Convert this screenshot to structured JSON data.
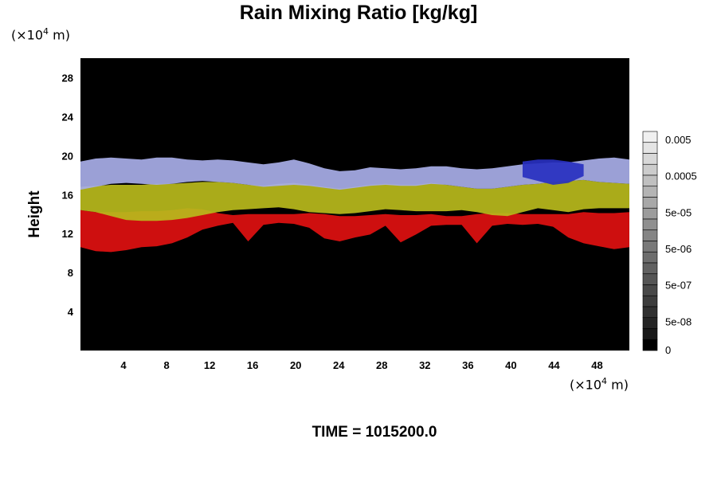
{
  "chart_data": {
    "type": "heatmap",
    "title": "Rain Mixing Ratio [kg/kg]",
    "ylabel": "Height",
    "x_unit": "(×10⁴ m)",
    "y_unit": "(×10⁴ m)",
    "x_unit_base": "(×10",
    "x_unit_exp": "4",
    "x_unit_tail": " m)",
    "y_unit_base": "(×10",
    "y_unit_exp": "4",
    "y_unit_tail": " m)",
    "xlim": [
      0,
      51
    ],
    "ylim": [
      0,
      30
    ],
    "xticks": [
      4,
      8,
      12,
      16,
      20,
      24,
      28,
      32,
      36,
      40,
      44,
      48
    ],
    "yticks": [
      4,
      8,
      12,
      16,
      20,
      24,
      28
    ],
    "colorbar": {
      "ticks": [
        "0.005",
        "0.0005",
        "5e-05",
        "5e-06",
        "5e-07",
        "5e-08",
        "0"
      ]
    },
    "layers": [
      {
        "band": "red",
        "color": "#e01010",
        "top": [
          14.4,
          14.2,
          14.2,
          14.2,
          14.3,
          14.3,
          14.4,
          14.6,
          14.5,
          14.1,
          13.9,
          14.0,
          14.0,
          14.0,
          14.0,
          14.1,
          14.0,
          13.8,
          13.8,
          13.9,
          14.0,
          13.9,
          13.9,
          14.0,
          13.8,
          13.8,
          14.0,
          14.1,
          14.1,
          14.0,
          14.0,
          14.0,
          14.0,
          14.2,
          14.1,
          14.1,
          14.2
        ],
        "bottom": [
          10.6,
          10.2,
          10.1,
          10.3,
          10.6,
          10.7,
          11.0,
          11.6,
          12.4,
          12.8,
          13.1,
          11.2,
          12.9,
          13.1,
          13.0,
          12.6,
          11.5,
          11.2,
          11.6,
          11.9,
          12.8,
          11.1,
          11.9,
          12.8,
          12.9,
          12.9,
          11.0,
          12.8,
          13.0,
          12.9,
          13.0,
          12.7,
          11.6,
          11.0,
          10.7,
          10.4,
          10.6
        ]
      },
      {
        "band": "yellow",
        "color": "#b8ba1c",
        "top": [
          16.8,
          16.9,
          17.0,
          17.0,
          17.0,
          17.1,
          17.1,
          17.2,
          17.3,
          17.3,
          17.2,
          17.0,
          16.9,
          17.1,
          17.2,
          17.0,
          16.8,
          16.6,
          16.8,
          17.0,
          17.1,
          17.0,
          17.0,
          17.2,
          17.0,
          16.8,
          16.6,
          16.6,
          16.8,
          17.0,
          17.1,
          17.3,
          17.4,
          17.5,
          17.3,
          17.2,
          17.1
        ],
        "bottom": [
          14.4,
          14.2,
          13.8,
          13.4,
          13.3,
          13.3,
          13.4,
          13.6,
          13.9,
          14.2,
          14.4,
          14.5,
          14.6,
          14.7,
          14.5,
          14.2,
          14.1,
          14.0,
          14.1,
          14.3,
          14.5,
          14.4,
          14.3,
          14.3,
          14.3,
          14.4,
          14.2,
          13.9,
          13.8,
          14.2,
          14.6,
          14.4,
          14.2,
          14.5,
          14.6,
          14.6,
          14.6
        ]
      },
      {
        "band": "lavender",
        "color": "#a8aee8",
        "top": [
          19.4,
          19.7,
          19.8,
          19.7,
          19.6,
          19.8,
          19.8,
          19.6,
          19.5,
          19.6,
          19.5,
          19.3,
          19.1,
          19.3,
          19.6,
          19.2,
          18.7,
          18.4,
          18.5,
          18.8,
          18.7,
          18.6,
          18.7,
          18.9,
          18.9,
          18.7,
          18.6,
          18.7,
          18.9,
          19.1,
          19.2,
          19.3,
          19.3,
          19.5,
          19.7,
          19.8,
          19.6
        ],
        "bottom": [
          16.5,
          16.8,
          17.1,
          17.2,
          17.1,
          17.0,
          17.1,
          17.3,
          17.4,
          17.3,
          17.2,
          17.0,
          16.8,
          16.9,
          17.0,
          16.9,
          16.7,
          16.5,
          16.7,
          16.9,
          17.0,
          16.9,
          16.9,
          17.1,
          17.0,
          16.8,
          16.6,
          16.6,
          16.8,
          17.0,
          17.1,
          17.3,
          17.4,
          17.5,
          17.3,
          17.2,
          17.1
        ]
      },
      {
        "band": "blue",
        "color": "#2830c0",
        "top": [
          0,
          0,
          0,
          0,
          0,
          0,
          0,
          0,
          0,
          0,
          0,
          0,
          0,
          0,
          0,
          0,
          0,
          0,
          0,
          0,
          0,
          0,
          0,
          0,
          0,
          0,
          0,
          0,
          0,
          19.4,
          19.6,
          19.6,
          19.4,
          19.1,
          0,
          0,
          0
        ],
        "bottom": [
          0,
          0,
          0,
          0,
          0,
          0,
          0,
          0,
          0,
          0,
          0,
          0,
          0,
          0,
          0,
          0,
          0,
          0,
          0,
          0,
          0,
          0,
          0,
          0,
          0,
          0,
          0,
          0,
          0,
          17.8,
          17.4,
          17.0,
          17.2,
          17.9,
          0,
          0,
          0
        ]
      }
    ],
    "grid": false,
    "legend": "colorbar-right"
  },
  "footer": {
    "time_label": "TIME = 1015200.0"
  }
}
